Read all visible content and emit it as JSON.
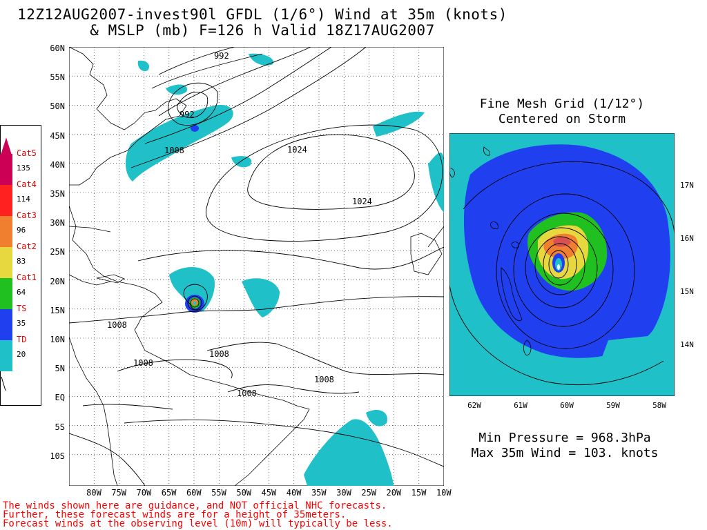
{
  "header": {
    "line1": "12Z12AUG2007-invest90l GFDL (1/6°) Wind at 35m (knots)",
    "line2": "& MSLP (mb) F=126 h Valid 18Z17AUG2007"
  },
  "main_map": {
    "lat_labels": [
      "60N",
      "55N",
      "50N",
      "45N",
      "40N",
      "35N",
      "30N",
      "25N",
      "20N",
      "15N",
      "10N",
      "5N",
      "EQ",
      "5S",
      "10S"
    ],
    "lon_labels": [
      "80W",
      "75W",
      "70W",
      "65W",
      "60W",
      "55W",
      "50W",
      "45W",
      "40W",
      "35W",
      "30W",
      "25W",
      "20W",
      "15W",
      "10W"
    ],
    "isobar_labels": [
      "992",
      "992",
      "1008",
      "1024",
      "1024",
      "1008",
      "1008",
      "1008",
      "1008",
      "1008"
    ]
  },
  "fine_mesh": {
    "title1": "Fine Mesh Grid (1/12°)",
    "title2": "Centered on Storm",
    "lat_labels": [
      "17N",
      "16N",
      "15N",
      "14N"
    ],
    "lon_labels": [
      "62W",
      "61W",
      "60W",
      "59W",
      "58W"
    ]
  },
  "stats": {
    "min_pressure": "Min Pressure = 968.3hPa",
    "max_wind": "Max 35m Wind = 103. knots"
  },
  "legend": {
    "items": [
      {
        "cat": "Cat5",
        "value": "135",
        "color": "#cc0055"
      },
      {
        "cat": "Cat4",
        "value": "114",
        "color": "#ff2020"
      },
      {
        "cat": "Cat3",
        "value": "96",
        "color": "#f08030"
      },
      {
        "cat": "Cat2",
        "value": "83",
        "color": "#e8d840"
      },
      {
        "cat": "Cat1",
        "value": "64",
        "color": "#20c020"
      },
      {
        "cat": "TS",
        "value": "35",
        "color": "#2040f0"
      },
      {
        "cat": "TD",
        "value": "20",
        "color": "#20c0c8"
      }
    ]
  },
  "disclaimer": {
    "line1": "The winds shown here are guidance, and NOT official NHC forecasts.",
    "line2": "Further, these forecast winds are for a height of 35meters.",
    "line3": "Forecast winds at the observing level (10m) will typically be less."
  }
}
